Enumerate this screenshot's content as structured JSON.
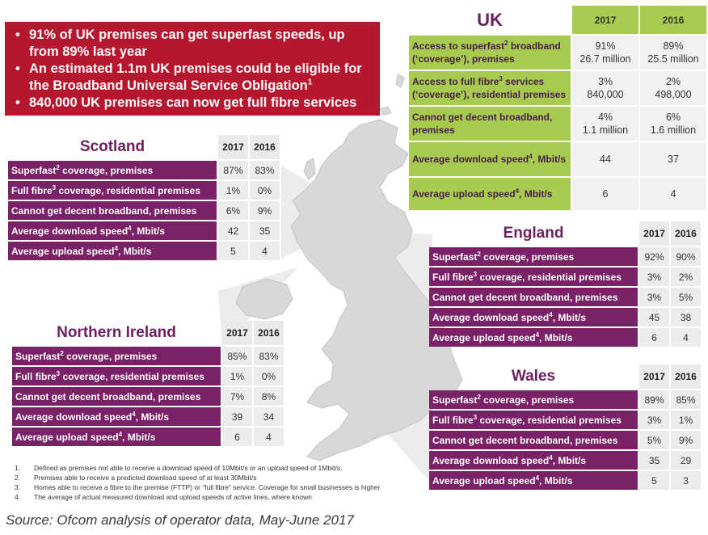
{
  "bullets": [
    "91% of UK premises can get superfast speeds, up from 89% last year",
    "An estimated 1.1m UK premises could be eligible for the Broadband Universal Service Obligation",
    "840,000 UK premises can now get full fibre services"
  ],
  "bullet_sup": "1",
  "uk": {
    "title": "UK",
    "years": [
      "2017",
      "2016"
    ],
    "rows": [
      {
        "label": "Access to superfast",
        "sup": "2",
        "label_rest": " broadband (‘coverage’), premises",
        "v2017": [
          "91%",
          "26.7 million"
        ],
        "v2016": [
          "89%",
          "25.5 million"
        ]
      },
      {
        "label": "Access to full fibre",
        "sup": "3",
        "label_rest": " services (‘coverage’), residential premises",
        "v2017": [
          "3%",
          "840,000"
        ],
        "v2016": [
          "2%",
          "498,000"
        ]
      },
      {
        "label": "Cannot get decent broadband, premises",
        "sup": "",
        "label_rest": "",
        "v2017": [
          "4%",
          "1.1 million"
        ],
        "v2016": [
          "6%",
          "1.6 million"
        ]
      },
      {
        "label": "Average download speed",
        "sup": "4",
        "label_rest": ", Mbit/s",
        "v2017": [
          "44"
        ],
        "v2016": [
          "37"
        ]
      },
      {
        "label": "Average upload speed",
        "sup": "4",
        "label_rest": ", Mbit/s",
        "v2017": [
          "6"
        ],
        "v2016": [
          "4"
        ]
      }
    ]
  },
  "nations": [
    {
      "key": "scotland",
      "title": "Scotland",
      "years": [
        "2017",
        "2016"
      ],
      "rows": [
        {
          "label": "Superfast",
          "sup": "2",
          "label_rest": " coverage, premises",
          "v2017": "87%",
          "v2016": "83%"
        },
        {
          "label": "Full fibre",
          "sup": "3",
          "label_rest": " coverage, residential premises",
          "v2017": "1%",
          "v2016": "0%"
        },
        {
          "label": "Cannot get decent broadband, premises",
          "sup": "",
          "label_rest": "",
          "v2017": "6%",
          "v2016": "9%"
        },
        {
          "label": "Average download speed",
          "sup": "4",
          "label_rest": ", Mbit/s",
          "v2017": "42",
          "v2016": "35"
        },
        {
          "label": "Average upload speed",
          "sup": "4",
          "label_rest": ", Mbit/s",
          "v2017": "5",
          "v2016": "4"
        }
      ]
    },
    {
      "key": "england",
      "title": "England",
      "years": [
        "2017",
        "2016"
      ],
      "rows": [
        {
          "label": "Superfast",
          "sup": "2",
          "label_rest": " coverage, premises",
          "v2017": "92%",
          "v2016": "90%"
        },
        {
          "label": "Full fibre",
          "sup": "3",
          "label_rest": " coverage, residential premises",
          "v2017": "3%",
          "v2016": "2%"
        },
        {
          "label": "Cannot get decent broadband, premises",
          "sup": "",
          "label_rest": "",
          "v2017": "3%",
          "v2016": "5%"
        },
        {
          "label": "Average download speed",
          "sup": "4",
          "label_rest": ", Mbit/s",
          "v2017": "45",
          "v2016": "38"
        },
        {
          "label": "Average upload speed",
          "sup": "4",
          "label_rest": ", Mbit/s",
          "v2017": "6",
          "v2016": "4"
        }
      ]
    },
    {
      "key": "northern-ireland",
      "title": "Northern Ireland",
      "years": [
        "2017",
        "2016"
      ],
      "rows": [
        {
          "label": "Superfast",
          "sup": "2",
          "label_rest": " coverage, premises",
          "v2017": "85%",
          "v2016": "83%"
        },
        {
          "label": "Full fibre",
          "sup": "3",
          "label_rest": " coverage, residential premises",
          "v2017": "1%",
          "v2016": "0%"
        },
        {
          "label": "Cannot get decent broadband, premises",
          "sup": "",
          "label_rest": "",
          "v2017": "7%",
          "v2016": "8%"
        },
        {
          "label": "Average download speed",
          "sup": "4",
          "label_rest": ", Mbit/s",
          "v2017": "39",
          "v2016": "34"
        },
        {
          "label": "Average upload speed",
          "sup": "4",
          "label_rest": ", Mbit/s",
          "v2017": "6",
          "v2016": "4"
        }
      ]
    },
    {
      "key": "wales",
      "title": "Wales",
      "years": [
        "2017",
        "2016"
      ],
      "rows": [
        {
          "label": "Superfast",
          "sup": "2",
          "label_rest": " coverage, premises",
          "v2017": "89%",
          "v2016": "85%"
        },
        {
          "label": "Full fibre",
          "sup": "3",
          "label_rest": " coverage, residential premises",
          "v2017": "3%",
          "v2016": "1%"
        },
        {
          "label": "Cannot get decent broadband, premises",
          "sup": "",
          "label_rest": "",
          "v2017": "5%",
          "v2016": "9%"
        },
        {
          "label": "Average download speed",
          "sup": "4",
          "label_rest": ", Mbit/s",
          "v2017": "35",
          "v2016": "29"
        },
        {
          "label": "Average upload speed",
          "sup": "4",
          "label_rest": ", Mbit/s",
          "v2017": "5",
          "v2016": "3"
        }
      ]
    }
  ],
  "footnotes": [
    {
      "num": "1.",
      "text": "Defined as premises not able to receive a download speed of 10Mbit/s or an upload speed of 1Mbit/s."
    },
    {
      "num": "2.",
      "text": "Premises able to receive a predicted download speed of at least 30Mbit/s"
    },
    {
      "num": "3.",
      "text": "Homes able to receive a fibre to the premise (FTTP) or “full fibre” service. Coverage for small businesses is higher"
    },
    {
      "num": "4.",
      "text": "The average of actual measured download and upload speeds of active lines, where known"
    }
  ],
  "source": "Source: Ofcom analysis of operator data, May-June 2017",
  "colors": {
    "bullet_bg": "#b5172f",
    "row_label_bg": "#7a2167",
    "uk_green": "#a6cb4f",
    "title_purple": "#6b1f5f"
  }
}
